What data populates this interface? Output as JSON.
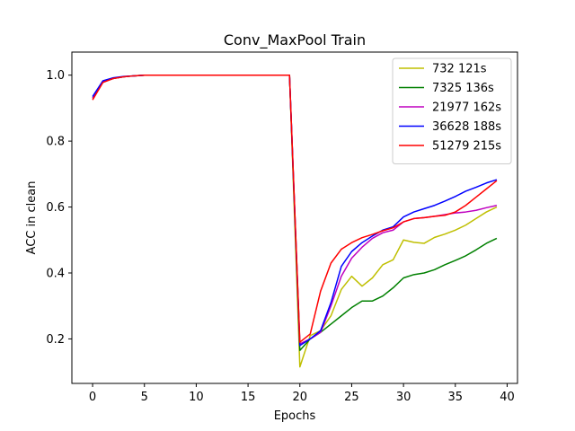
{
  "chart_data": {
    "type": "line",
    "title": "Conv_MaxPool Train",
    "xlabel": "Epochs",
    "ylabel": "ACC in clean",
    "xlim": [
      -2,
      41
    ],
    "ylim": [
      0.065,
      1.07
    ],
    "xticks": [
      0,
      5,
      10,
      15,
      20,
      25,
      30,
      35,
      40
    ],
    "yticks": [
      0.2,
      0.4,
      0.6,
      0.8,
      1.0
    ],
    "ytick_labels": [
      "0.2",
      "0.4",
      "0.6",
      "0.8",
      "1.0"
    ],
    "grid": false,
    "legend_position": "top-right",
    "x": [
      0,
      1,
      2,
      3,
      4,
      5,
      6,
      7,
      8,
      9,
      10,
      11,
      12,
      13,
      14,
      15,
      16,
      17,
      18,
      19,
      20,
      21,
      22,
      23,
      24,
      25,
      26,
      27,
      28,
      29,
      30,
      31,
      32,
      33,
      34,
      35,
      36,
      37,
      38,
      39
    ],
    "series": [
      {
        "name": "732 121s",
        "color": "#bfbf00",
        "values": [
          0.93,
          0.98,
          0.99,
          0.995,
          0.998,
          1.0,
          1.0,
          1.0,
          1.0,
          1.0,
          1.0,
          1.0,
          1.0,
          1.0,
          1.0,
          1.0,
          1.0,
          1.0,
          1.0,
          1.0,
          0.115,
          0.21,
          0.225,
          0.27,
          0.35,
          0.39,
          0.36,
          0.385,
          0.425,
          0.44,
          0.5,
          0.493,
          0.49,
          0.508,
          0.518,
          0.53,
          0.545,
          0.565,
          0.585,
          0.6
        ]
      },
      {
        "name": "7325 136s",
        "color": "#008000",
        "values": [
          0.93,
          0.98,
          0.99,
          0.995,
          0.998,
          1.0,
          1.0,
          1.0,
          1.0,
          1.0,
          1.0,
          1.0,
          1.0,
          1.0,
          1.0,
          1.0,
          1.0,
          1.0,
          1.0,
          1.0,
          0.165,
          0.2,
          0.22,
          0.245,
          0.27,
          0.295,
          0.315,
          0.315,
          0.33,
          0.355,
          0.385,
          0.395,
          0.4,
          0.41,
          0.425,
          0.438,
          0.452,
          0.47,
          0.49,
          0.505
        ]
      },
      {
        "name": "21977 162s",
        "color": "#bf00bf",
        "values": [
          0.93,
          0.98,
          0.99,
          0.995,
          0.998,
          1.0,
          1.0,
          1.0,
          1.0,
          1.0,
          1.0,
          1.0,
          1.0,
          1.0,
          1.0,
          1.0,
          1.0,
          1.0,
          1.0,
          1.0,
          0.185,
          0.2,
          0.22,
          0.3,
          0.39,
          0.445,
          0.478,
          0.505,
          0.522,
          0.53,
          0.555,
          0.565,
          0.568,
          0.572,
          0.577,
          0.582,
          0.585,
          0.59,
          0.598,
          0.605
        ]
      },
      {
        "name": "36628 188s",
        "color": "#0000ff",
        "values": [
          0.935,
          0.983,
          0.992,
          0.996,
          0.998,
          1.0,
          1.0,
          1.0,
          1.0,
          1.0,
          1.0,
          1.0,
          1.0,
          1.0,
          1.0,
          1.0,
          1.0,
          1.0,
          1.0,
          1.0,
          0.18,
          0.2,
          0.225,
          0.31,
          0.42,
          0.465,
          0.492,
          0.512,
          0.53,
          0.54,
          0.57,
          0.585,
          0.595,
          0.605,
          0.618,
          0.632,
          0.648,
          0.66,
          0.673,
          0.683
        ]
      },
      {
        "name": "51279 215s",
        "color": "#ff0000",
        "values": [
          0.925,
          0.978,
          0.99,
          0.995,
          0.998,
          1.0,
          1.0,
          1.0,
          1.0,
          1.0,
          1.0,
          1.0,
          1.0,
          1.0,
          1.0,
          1.0,
          1.0,
          1.0,
          1.0,
          1.0,
          0.19,
          0.215,
          0.345,
          0.43,
          0.472,
          0.492,
          0.507,
          0.517,
          0.528,
          0.537,
          0.555,
          0.565,
          0.568,
          0.572,
          0.575,
          0.585,
          0.605,
          0.63,
          0.655,
          0.68
        ]
      }
    ]
  }
}
